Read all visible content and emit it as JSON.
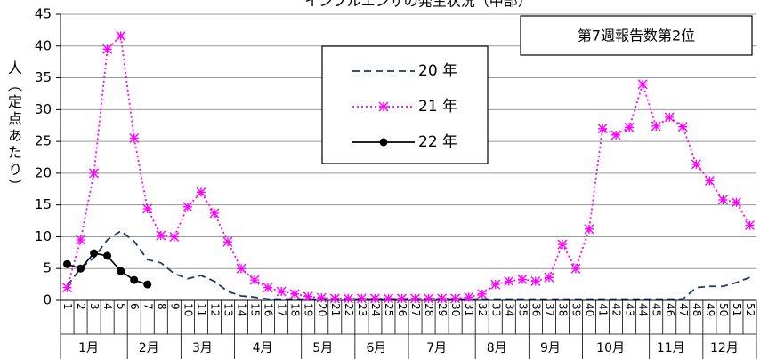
{
  "chart_data": {
    "type": "line",
    "title": "インフルエンザの発生状況（中部）",
    "annotation": "第7週報告数第2位",
    "y_label": "人（定点あたり）",
    "categories": [
      "1",
      "2",
      "3",
      "4",
      "5",
      "6",
      "7",
      "8",
      "9",
      "10",
      "11",
      "12",
      "13",
      "14",
      "15",
      "16",
      "17",
      "18",
      "19",
      "20",
      "21",
      "22",
      "23",
      "24",
      "25",
      "26",
      "27",
      "28",
      "29",
      "30",
      "31",
      "32",
      "33",
      "34",
      "35",
      "36",
      "37",
      "38",
      "39",
      "40",
      "41",
      "42",
      "43",
      "44",
      "45",
      "46",
      "47",
      "48",
      "49",
      "50",
      "51",
      "52"
    ],
    "months": [
      "1月",
      "2月",
      "3月",
      "4月",
      "5月",
      "6月",
      "7月",
      "8月",
      "9月",
      "10月",
      "11月",
      "12月"
    ],
    "ylim": [
      0,
      45
    ],
    "yticks": [
      0,
      5,
      10,
      15,
      20,
      25,
      30,
      35,
      40,
      45
    ],
    "grid": true,
    "series": [
      {
        "name": "20 年",
        "color": "#1f3864",
        "style": "dashed",
        "marker": "none",
        "values": [
          2.3,
          5,
          6.7,
          9.5,
          10.9,
          9.3,
          6.4,
          5.9,
          4.2,
          3.4,
          3.9,
          3,
          1.4,
          0.7,
          0.5,
          0.2,
          0.2,
          0.2,
          0.2,
          0.2,
          0.2,
          0.2,
          0.2,
          0.2,
          0.2,
          0.2,
          0.2,
          0.2,
          0.2,
          0.2,
          0.2,
          0.2,
          0.2,
          0.2,
          0.2,
          0.2,
          0.2,
          0.2,
          0.2,
          0.2,
          0.2,
          0.2,
          0.2,
          0.2,
          0.2,
          0.2,
          0.2,
          2,
          2.2,
          2.2,
          2.8,
          3.6
        ]
      },
      {
        "name": "21 年",
        "color": "#ff00ff",
        "style": "dotted",
        "marker": "asterisk",
        "values": [
          2,
          9.5,
          20,
          39.5,
          41.6,
          25.5,
          14.4,
          10.2,
          10,
          14.7,
          17,
          13.7,
          9.2,
          5,
          3.2,
          2,
          1.4,
          1,
          0.6,
          0.4,
          0.3,
          0.3,
          0.3,
          0.3,
          0.3,
          0.3,
          0.3,
          0.3,
          0.3,
          0.3,
          0.5,
          1,
          2.5,
          3,
          3.3,
          3,
          3.6,
          8.8,
          5,
          11.2,
          27,
          26,
          27.2,
          34,
          27.4,
          28.8,
          27.3,
          21.4,
          18.8,
          15.8,
          15.4,
          11.8
        ]
      },
      {
        "name": "22 年",
        "color": "#000000",
        "style": "solid",
        "marker": "circle",
        "values": [
          5.7,
          5,
          7.4,
          7,
          4.6,
          3.2,
          2.5,
          null,
          null,
          null,
          null,
          null,
          null,
          null,
          null,
          null,
          null,
          null,
          null,
          null,
          null,
          null,
          null,
          null,
          null,
          null,
          null,
          null,
          null,
          null,
          null,
          null,
          null,
          null,
          null,
          null,
          null,
          null,
          null,
          null,
          null,
          null,
          null,
          null,
          null,
          null,
          null,
          null,
          null,
          null,
          null,
          null
        ]
      }
    ]
  }
}
